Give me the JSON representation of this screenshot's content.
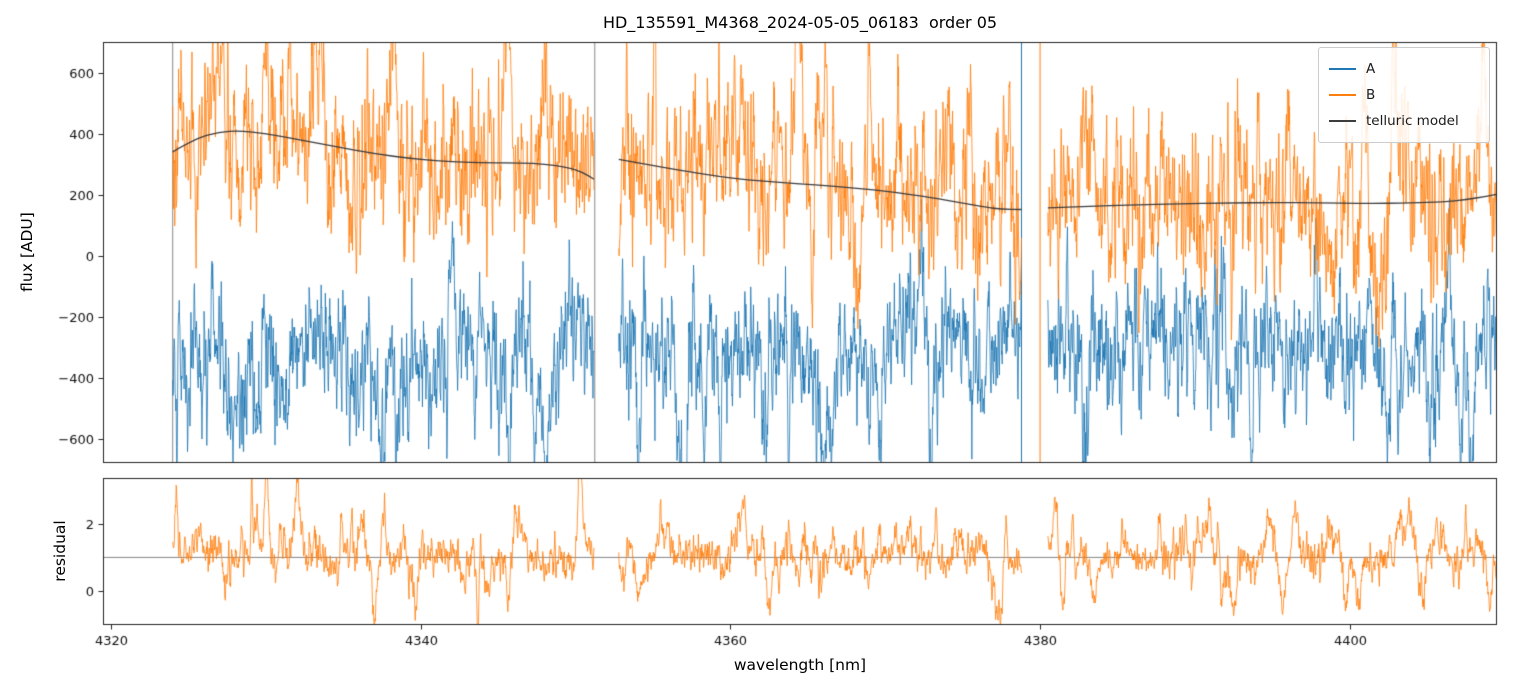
{
  "chart_data": {
    "type": "line",
    "title": "HD_135591_M4368_2024-05-05_06183  order 05",
    "xlabel": "wavelength [nm]",
    "xlim": [
      4319.5,
      4409.5
    ],
    "xticks": [
      {
        "v": 4320,
        "label": "4320"
      },
      {
        "v": 4340,
        "label": "4340"
      },
      {
        "v": 4360,
        "label": "4360"
      },
      {
        "v": 4380,
        "label": "4380"
      },
      {
        "v": 4400,
        "label": "4400"
      }
    ],
    "panels": [
      {
        "name": "flux",
        "ylabel": "flux [ADU]",
        "ylim": [
          -680,
          700
        ],
        "yticks": [
          {
            "v": -600,
            "label": "−600"
          },
          {
            "v": -400,
            "label": "−400"
          },
          {
            "v": -200,
            "label": "−200"
          },
          {
            "v": 0,
            "label": "0"
          },
          {
            "v": 200,
            "label": "200"
          },
          {
            "v": 400,
            "label": "400"
          },
          {
            "v": 600,
            "label": "600"
          }
        ]
      },
      {
        "name": "residual",
        "ylabel": "residual",
        "ylim": [
          -1.0,
          3.35
        ],
        "yticks": [
          {
            "v": 0,
            "label": "0"
          },
          {
            "v": 2,
            "label": "2"
          }
        ],
        "hline": 1.0
      }
    ],
    "segments": [
      [
        4324.0,
        4351.2
      ],
      [
        4352.8,
        4378.8
      ],
      [
        4380.5,
        4409.6
      ]
    ],
    "series": [
      {
        "name": "A",
        "color": "#1f77b4",
        "panel": 0,
        "noise": {
          "means": [
            -285,
            -270,
            -255
          ],
          "sigma": 100,
          "line_density": 2.0,
          "line_amp": 240,
          "up_frac": 0.22,
          "seed": 101
        }
      },
      {
        "name": "B",
        "color": "#ff7f0e",
        "panel": 0,
        "noise": {
          "mean_follows_model": true,
          "offset": -15,
          "sigma": 118,
          "line_density": 2.2,
          "line_amp": 270,
          "up_frac": 0.72,
          "seed": 202
        }
      },
      {
        "name": "telluric model",
        "color": "#3d3d3d",
        "panel": 0,
        "model_points": [
          [
            [
              4324.0,
              340
            ],
            [
              4325.5,
              384
            ],
            [
              4327.0,
              405
            ],
            [
              4328.3,
              409
            ],
            [
              4330.0,
              400
            ],
            [
              4332.0,
              381
            ],
            [
              4334.5,
              357
            ],
            [
              4337.0,
              334
            ],
            [
              4339.5,
              317
            ],
            [
              4342.0,
              307
            ],
            [
              4344.5,
              304
            ],
            [
              4346.5,
              304
            ],
            [
              4348.0,
              300
            ],
            [
              4349.5,
              289
            ],
            [
              4350.5,
              272
            ],
            [
              4351.2,
              250
            ]
          ],
          [
            [
              4352.8,
              315
            ],
            [
              4354.5,
              300
            ],
            [
              4356.5,
              282
            ],
            [
              4358.5,
              265
            ],
            [
              4360.5,
              251
            ],
            [
              4363.0,
              240
            ],
            [
              4365.5,
              232
            ],
            [
              4368.0,
              222
            ],
            [
              4370.5,
              208
            ],
            [
              4373.0,
              190
            ],
            [
              4375.0,
              172
            ],
            [
              4376.5,
              158
            ],
            [
              4377.5,
              152
            ],
            [
              4378.8,
              151
            ]
          ],
          [
            [
              4380.5,
              156
            ],
            [
              4383.0,
              161
            ],
            [
              4386.0,
              166
            ],
            [
              4389.0,
              170
            ],
            [
              4392.0,
              172
            ],
            [
              4395.0,
              174
            ],
            [
              4398.0,
              173
            ],
            [
              4401.0,
              171
            ],
            [
              4404.0,
              172
            ],
            [
              4406.0,
              176
            ],
            [
              4407.5,
              183
            ],
            [
              4409.0,
              196
            ],
            [
              4409.6,
              202
            ]
          ]
        ]
      }
    ],
    "residual_series": {
      "color": "#ff7f0e",
      "mean": 1.0,
      "sigma": 0.27,
      "line_density": 1.8,
      "line_amp": 1.15,
      "up_frac": 0.62,
      "seed": 303
    },
    "edge_lines": [
      {
        "x": 4324.0,
        "color": "#8a8a8a"
      },
      {
        "x": 4351.25,
        "color": "#8a8a8a"
      },
      {
        "x": 4378.8,
        "color": "#1f77b4"
      },
      {
        "x": 4380.0,
        "color": "#ff7f0e"
      }
    ],
    "legend": {
      "entries": [
        "A",
        "B",
        "telluric model"
      ]
    }
  }
}
